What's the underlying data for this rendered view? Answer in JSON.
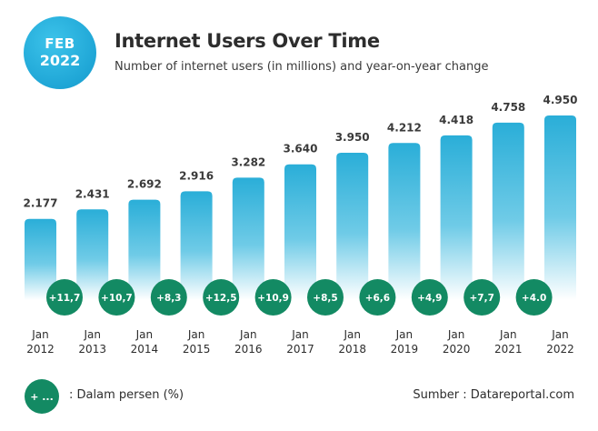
{
  "badge": {
    "month": "FEB",
    "year": "2022"
  },
  "title": "Internet Users Over Time",
  "subtitle": "Number of internet users (in millions) and year-on-year change",
  "legend": {
    "marker": "+ ...",
    "text": ": Dalam persen (%)"
  },
  "source": "Sumber :  Datareportal.com",
  "colors": {
    "bar_top": "#2aaed8",
    "bar_bottom": "#ffffff",
    "change_badge": "#138a63",
    "badge": "#22aad9"
  },
  "chart_data": {
    "type": "bar",
    "title": "Internet Users Over Time",
    "categories": [
      [
        "Jan",
        "2012"
      ],
      [
        "Jan",
        "2013"
      ],
      [
        "Jan",
        "2014"
      ],
      [
        "Jan",
        "2015"
      ],
      [
        "Jan",
        "2016"
      ],
      [
        "Jan",
        "2017"
      ],
      [
        "Jan",
        "2018"
      ],
      [
        "Jan",
        "2019"
      ],
      [
        "Jan",
        "2020"
      ],
      [
        "Jan",
        "2021"
      ],
      [
        "Jan",
        "2022"
      ]
    ],
    "value_labels": [
      "2.177",
      "2.431",
      "2.692",
      "2.916",
      "3.282",
      "3.640",
      "3.950",
      "4.212",
      "4.418",
      "4.758",
      "4.950"
    ],
    "values": [
      2177,
      2431,
      2692,
      2916,
      3282,
      3640,
      3950,
      4212,
      4418,
      4758,
      4950
    ],
    "yoy_change_labels": [
      "+11,7",
      "+10,7",
      "+8,3",
      "+12,5",
      "+10,9",
      "+8,5",
      "+6,6",
      "+4,9",
      "+7,7",
      "+4.0"
    ],
    "grid": false,
    "legend": "bottom-left"
  }
}
